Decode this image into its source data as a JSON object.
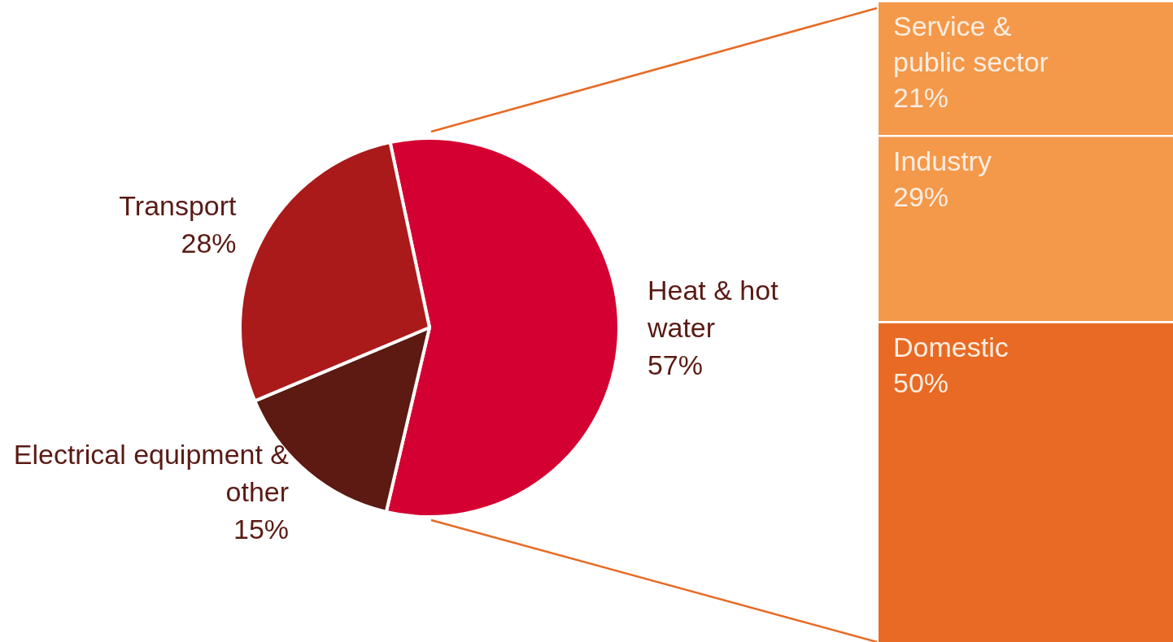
{
  "chart_data": [
    {
      "type": "pie",
      "categories": [
        "Heat & hot water",
        "Electrical equipment & other",
        "Transport"
      ],
      "values": [
        57,
        15,
        28
      ],
      "value_labels": [
        "57%",
        "15%",
        "28%"
      ],
      "colors": [
        "#d50032",
        "#5c1a12",
        "#aa1a1a"
      ]
    },
    {
      "type": "bar",
      "stacked": true,
      "categories": [
        null
      ],
      "series": [
        {
          "name": "Domestic",
          "color": "#e86a24",
          "values": [
            50
          ],
          "value_labels": [
            "50%"
          ]
        },
        {
          "name": "Industry",
          "color": "#f4984a",
          "values": [
            29
          ],
          "value_labels": [
            "29%"
          ]
        },
        {
          "name": "Service & public sector",
          "color": "#f4984a",
          "values": [
            21
          ],
          "value_labels": [
            "21%"
          ]
        }
      ]
    }
  ]
}
